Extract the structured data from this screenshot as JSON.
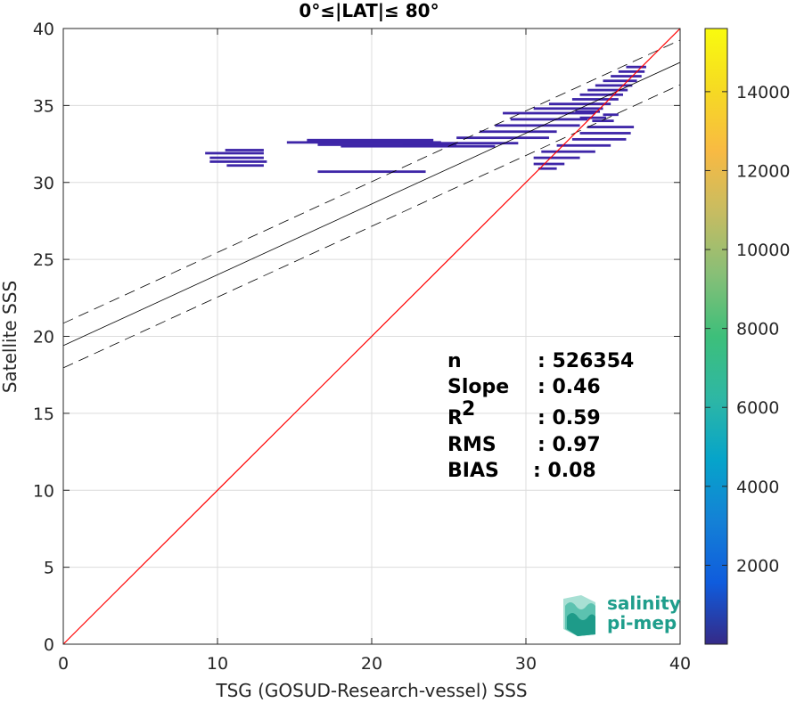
{
  "chart_data": {
    "type": "scatter",
    "title": "0°≤|LAT|≤ 80°",
    "xlabel": "TSG (GOSUD-Research-vessel) SSS",
    "ylabel": "Satellite SSS",
    "xlim": [
      0,
      40
    ],
    "ylim": [
      0,
      40
    ],
    "xticks": [
      "0",
      "10",
      "20",
      "30",
      "40"
    ],
    "yticks": [
      "0",
      "5",
      "10",
      "15",
      "20",
      "25",
      "30",
      "35",
      "40"
    ],
    "grid": true,
    "colorbar": {
      "colormap": "parula",
      "range": [
        0,
        15600
      ],
      "ticks": [
        "2000",
        "4000",
        "6000",
        "8000",
        "10000",
        "12000",
        "14000"
      ]
    },
    "reference_line": {
      "label": "1:1",
      "color": "#ff0000",
      "from": [
        0,
        0
      ],
      "to": [
        40,
        40
      ]
    },
    "regression": {
      "color": "#000000",
      "slope": 0.46,
      "intercept": 19.4,
      "band_offset": 1.45
    },
    "stats": [
      {
        "label": "n",
        "sup": "",
        "value": ": 526354"
      },
      {
        "label": "Slope",
        "sup": "",
        "value": ": 0.46"
      },
      {
        "label": "R",
        "sup": "2",
        "value": ": 0.59"
      },
      {
        "label": "RMS",
        "sup": "",
        "value": ": 0.97"
      },
      {
        "label": "BIAS",
        "sup": "",
        "value": ": 0.08"
      }
    ],
    "density_color": "#3e26a8",
    "density_segments": [
      {
        "x1": 9.2,
        "x2": 13.0,
        "y": 31.9
      },
      {
        "x1": 10.5,
        "x2": 13.0,
        "y": 32.1
      },
      {
        "x1": 9.5,
        "x2": 13.0,
        "y": 31.6
      },
      {
        "x1": 9.5,
        "x2": 13.2,
        "y": 31.35
      },
      {
        "x1": 10.6,
        "x2": 13.0,
        "y": 31.1
      },
      {
        "x1": 14.5,
        "x2": 24.5,
        "y": 32.6
      },
      {
        "x1": 15.8,
        "x2": 24.0,
        "y": 32.75
      },
      {
        "x1": 16.5,
        "x2": 25.5,
        "y": 32.45
      },
      {
        "x1": 18.0,
        "x2": 28.0,
        "y": 32.35
      },
      {
        "x1": 22.0,
        "x2": 29.5,
        "y": 32.55
      },
      {
        "x1": 16.5,
        "x2": 23.5,
        "y": 30.7
      },
      {
        "x1": 25.5,
        "x2": 31.5,
        "y": 32.9
      },
      {
        "x1": 27.0,
        "x2": 32.0,
        "y": 33.3
      },
      {
        "x1": 28.0,
        "x2": 33.5,
        "y": 33.7
      },
      {
        "x1": 29.0,
        "x2": 34.0,
        "y": 34.1
      },
      {
        "x1": 28.5,
        "x2": 34.5,
        "y": 34.5
      },
      {
        "x1": 30.5,
        "x2": 35.0,
        "y": 34.8
      },
      {
        "x1": 31.5,
        "x2": 35.5,
        "y": 35.1
      },
      {
        "x1": 33.0,
        "x2": 36.0,
        "y": 35.4
      },
      {
        "x1": 33.5,
        "x2": 36.3,
        "y": 35.7
      },
      {
        "x1": 34.0,
        "x2": 36.6,
        "y": 36.0
      },
      {
        "x1": 34.5,
        "x2": 36.9,
        "y": 36.3
      },
      {
        "x1": 35.0,
        "x2": 37.2,
        "y": 36.6
      },
      {
        "x1": 35.5,
        "x2": 37.5,
        "y": 36.9
      },
      {
        "x1": 36.0,
        "x2": 37.7,
        "y": 37.2
      },
      {
        "x1": 36.5,
        "x2": 37.8,
        "y": 37.5
      },
      {
        "x1": 31.0,
        "x2": 34.5,
        "y": 32.0
      },
      {
        "x1": 30.5,
        "x2": 33.5,
        "y": 31.6
      },
      {
        "x1": 30.5,
        "x2": 32.5,
        "y": 31.2
      },
      {
        "x1": 30.8,
        "x2": 32.0,
        "y": 30.9
      },
      {
        "x1": 32.0,
        "x2": 35.5,
        "y": 32.4
      },
      {
        "x1": 33.0,
        "x2": 36.5,
        "y": 32.8
      },
      {
        "x1": 33.5,
        "x2": 36.8,
        "y": 33.2
      },
      {
        "x1": 34.0,
        "x2": 37.0,
        "y": 33.6
      },
      {
        "x1": 34.3,
        "x2": 35.7,
        "y": 34.0
      },
      {
        "x1": 35.0,
        "x2": 36.0,
        "y": 34.4
      },
      {
        "x1": 33.2,
        "x2": 34.8,
        "y": 34.6
      },
      {
        "x1": 33.5,
        "x2": 35.2,
        "y": 34.2
      }
    ]
  },
  "logo": {
    "line1": "salinity",
    "line2": "pi-mep"
  }
}
